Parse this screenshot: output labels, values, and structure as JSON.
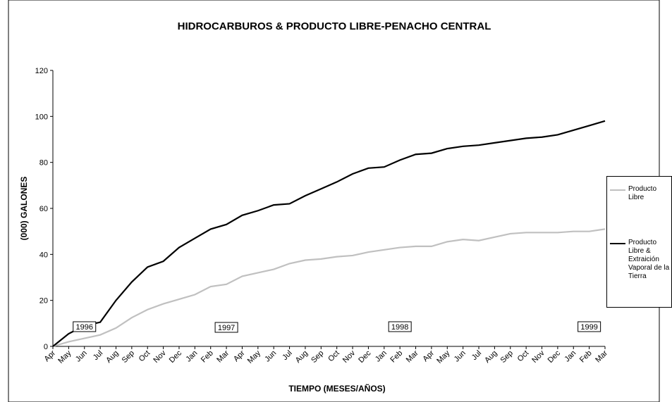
{
  "chart_data": {
    "type": "line",
    "title": "HIDROCARBUROS & PRODUCTO LIBRE-PENACHO CENTRAL",
    "x_label": "TIEMPO (MESES/AÑOS)",
    "y_label": "(000) GALONES",
    "categories": [
      "Apr",
      "May",
      "Jun",
      "Jul",
      "Aug",
      "Sep",
      "Oct",
      "Nov",
      "Dec",
      "Jan",
      "Feb",
      "Mar",
      "Apr",
      "May",
      "Jun",
      "Jul",
      "Aug",
      "Sep",
      "Oct",
      "Nov",
      "Dec",
      "Jan",
      "Feb",
      "Mar",
      "Apr",
      "May",
      "Jun",
      "Jul",
      "Aug",
      "Sep",
      "Oct",
      "Nov",
      "Dec",
      "Jan",
      "Feb",
      "Mar"
    ],
    "series": [
      {
        "name": "Producto Libre",
        "color": "#c0c0c0",
        "values": [
          0,
          2,
          3.5,
          5,
          8,
          12.5,
          16,
          18.5,
          20.5,
          22.5,
          26,
          27,
          30.5,
          32,
          33.5,
          36,
          37.5,
          38,
          39,
          39.5,
          41,
          42,
          43,
          43.5,
          43.5,
          45.5,
          46.5,
          46,
          47.5,
          49,
          49.5,
          49.5,
          49.5,
          50,
          50,
          51
        ]
      },
      {
        "name": "Producto Libre & Extraición Vaporal de la Tierra",
        "color": "#000000",
        "values": [
          0,
          5.5,
          9,
          10.5,
          20,
          28,
          34.5,
          37,
          43,
          47,
          51,
          53,
          57,
          59,
          61.5,
          62,
          65.5,
          68.5,
          71.5,
          75,
          77.5,
          78,
          81,
          83.5,
          84,
          86,
          87,
          87.5,
          88.5,
          89.5,
          90.5,
          91,
          92,
          94,
          96,
          98
        ]
      }
    ],
    "annotations": [
      "1996",
      "1997",
      "1998",
      "1999"
    ],
    "ylim": [
      0,
      120
    ],
    "yticks": [
      0,
      20,
      40,
      60,
      80,
      100,
      120
    ],
    "grid": false,
    "legend": "right"
  }
}
